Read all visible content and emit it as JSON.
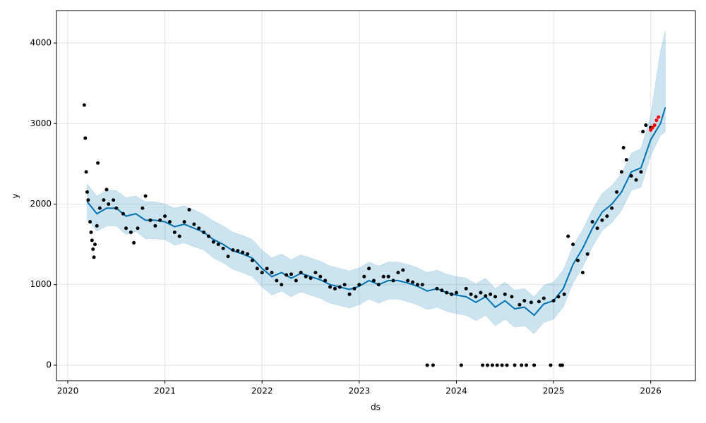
{
  "chart_data": {
    "type": "line",
    "xlabel": "ds",
    "ylabel": "y",
    "xlim": [
      2019.884,
      2026.46
    ],
    "ylim": [
      -193,
      4403
    ],
    "xticks": [
      2020,
      2021,
      2022,
      2023,
      2024,
      2025,
      2026
    ],
    "yticks": [
      0,
      1000,
      2000,
      3000,
      4000
    ],
    "grid": true,
    "series": [
      {
        "type": "band",
        "color": "#0072b2",
        "x": [
          2020.2,
          2020.3,
          2020.4,
          2020.5,
          2020.6,
          2020.7,
          2020.8,
          2020.9,
          2021.0,
          2021.1,
          2021.2,
          2021.3,
          2021.4,
          2021.5,
          2021.6,
          2021.7,
          2021.8,
          2021.9,
          2022.0,
          2022.1,
          2022.2,
          2022.3,
          2022.4,
          2022.5,
          2022.6,
          2022.7,
          2022.8,
          2022.9,
          2023.0,
          2023.1,
          2023.2,
          2023.3,
          2023.4,
          2023.5,
          2023.6,
          2023.7,
          2023.8,
          2023.9,
          2024.0,
          2024.1,
          2024.2,
          2024.3,
          2024.4,
          2024.5,
          2024.6,
          2024.7,
          2024.8,
          2024.9,
          2025.0,
          2025.1,
          2025.2,
          2025.3,
          2025.4,
          2025.5,
          2025.6,
          2025.7,
          2025.8,
          2025.9,
          2026.0,
          2026.1,
          2026.15
        ],
        "upper": [
          2250,
          2100,
          2170,
          2170,
          2080,
          2100,
          2030,
          2030,
          2000,
          1950,
          1980,
          1930,
          1870,
          1790,
          1730,
          1650,
          1610,
          1560,
          1430,
          1330,
          1380,
          1310,
          1370,
          1330,
          1290,
          1230,
          1200,
          1170,
          1210,
          1280,
          1230,
          1280,
          1280,
          1250,
          1210,
          1150,
          1180,
          1130,
          1100,
          1080,
          1010,
          1080,
          950,
          1030,
          930,
          950,
          850,
          990,
          1030,
          1180,
          1480,
          1680,
          1930,
          2130,
          2230,
          2380,
          2630,
          2690,
          3100,
          3900,
          4150
        ],
        "lower": [
          1810,
          1660,
          1730,
          1730,
          1620,
          1660,
          1570,
          1570,
          1560,
          1490,
          1520,
          1470,
          1430,
          1330,
          1270,
          1190,
          1150,
          1100,
          970,
          870,
          920,
          850,
          910,
          870,
          830,
          770,
          740,
          710,
          750,
          820,
          770,
          820,
          820,
          790,
          750,
          690,
          720,
          670,
          640,
          620,
          550,
          620,
          490,
          570,
          470,
          490,
          390,
          530,
          570,
          720,
          1020,
          1220,
          1470,
          1670,
          1770,
          1920,
          2170,
          2210,
          2600,
          2850,
          2900
        ]
      },
      {
        "type": "line",
        "color": "#0072b2",
        "x": [
          2020.2,
          2020.3,
          2020.4,
          2020.5,
          2020.6,
          2020.7,
          2020.8,
          2020.9,
          2021.0,
          2021.1,
          2021.2,
          2021.3,
          2021.4,
          2021.5,
          2021.6,
          2021.7,
          2021.8,
          2021.9,
          2022.0,
          2022.1,
          2022.2,
          2022.3,
          2022.4,
          2022.5,
          2022.6,
          2022.7,
          2022.8,
          2022.9,
          2023.0,
          2023.1,
          2023.2,
          2023.3,
          2023.4,
          2023.5,
          2023.6,
          2023.7,
          2023.8,
          2023.9,
          2024.0,
          2024.1,
          2024.2,
          2024.3,
          2024.4,
          2024.5,
          2024.6,
          2024.7,
          2024.8,
          2024.9,
          2025.0,
          2025.1,
          2025.2,
          2025.3,
          2025.4,
          2025.5,
          2025.6,
          2025.7,
          2025.8,
          2025.9,
          2026.0,
          2026.1,
          2026.15
        ],
        "values": [
          2030,
          1880,
          1950,
          1950,
          1850,
          1880,
          1800,
          1800,
          1780,
          1720,
          1750,
          1700,
          1650,
          1560,
          1500,
          1420,
          1380,
          1330,
          1200,
          1100,
          1150,
          1080,
          1140,
          1100,
          1060,
          1000,
          970,
          940,
          980,
          1050,
          1000,
          1050,
          1050,
          1020,
          980,
          920,
          950,
          900,
          870,
          850,
          780,
          850,
          720,
          800,
          700,
          720,
          620,
          760,
          800,
          950,
          1250,
          1450,
          1700,
          1900,
          2000,
          2150,
          2400,
          2450,
          2800,
          3000,
          3200
        ]
      },
      {
        "type": "scatter",
        "color": "#000000",
        "x": [
          2020.17,
          2020.18,
          2020.19,
          2020.2,
          2020.21,
          2020.23,
          2020.24,
          2020.25,
          2020.26,
          2020.27,
          2020.28,
          2020.3,
          2020.31,
          2020.33,
          2020.37,
          2020.4,
          2020.42,
          2020.47,
          2020.5,
          2020.57,
          2020.6,
          2020.65,
          2020.68,
          2020.72,
          2020.77,
          2020.8,
          2020.85,
          2020.9,
          2020.95,
          2021.0,
          2021.05,
          2021.1,
          2021.15,
          2021.2,
          2021.25,
          2021.3,
          2021.35,
          2021.4,
          2021.45,
          2021.5,
          2021.55,
          2021.6,
          2021.65,
          2021.7,
          2021.75,
          2021.8,
          2021.85,
          2021.9,
          2021.95,
          2022.0,
          2022.05,
          2022.1,
          2022.15,
          2022.2,
          2022.25,
          2022.3,
          2022.35,
          2022.4,
          2022.45,
          2022.5,
          2022.55,
          2022.6,
          2022.65,
          2022.7,
          2022.75,
          2022.8,
          2022.85,
          2022.9,
          2022.95,
          2023.0,
          2023.05,
          2023.1,
          2023.15,
          2023.2,
          2023.25,
          2023.3,
          2023.35,
          2023.4,
          2023.45,
          2023.5,
          2023.55,
          2023.6,
          2023.65,
          2023.7,
          2023.76,
          2023.8,
          2023.85,
          2023.9,
          2023.95,
          2024.0,
          2024.05,
          2024.1,
          2024.15,
          2024.2,
          2024.25,
          2024.27,
          2024.3,
          2024.32,
          2024.35,
          2024.37,
          2024.4,
          2024.42,
          2024.47,
          2024.5,
          2024.52,
          2024.57,
          2024.6,
          2024.65,
          2024.67,
          2024.7,
          2024.72,
          2024.77,
          2024.8,
          2024.85,
          2024.9,
          2024.97,
          2025.0,
          2025.05,
          2025.07,
          2025.09,
          2025.11,
          2025.15,
          2025.2,
          2025.25,
          2025.3,
          2025.35,
          2025.4,
          2025.45,
          2025.5,
          2025.55,
          2025.6,
          2025.65,
          2025.7,
          2025.72,
          2025.75,
          2025.8,
          2025.85,
          2025.9,
          2025.92,
          2025.95,
          2026.0
        ],
        "values": [
          3230,
          2820,
          2400,
          2150,
          2050,
          1780,
          1650,
          1550,
          1440,
          1340,
          1500,
          1730,
          2510,
          1950,
          2050,
          2180,
          2000,
          2050,
          1950,
          1880,
          1700,
          1650,
          1520,
          1700,
          1950,
          2100,
          1800,
          1730,
          1800,
          1850,
          1780,
          1650,
          1600,
          1780,
          1930,
          1750,
          1700,
          1650,
          1600,
          1530,
          1500,
          1450,
          1350,
          1430,
          1420,
          1400,
          1380,
          1300,
          1200,
          1150,
          1200,
          1150,
          1050,
          1000,
          1120,
          1130,
          1050,
          1150,
          1100,
          1080,
          1150,
          1100,
          1050,
          970,
          950,
          970,
          1000,
          880,
          950,
          1000,
          1100,
          1200,
          1050,
          1000,
          1100,
          1100,
          1050,
          1150,
          1180,
          1050,
          1030,
          1000,
          1000,
          0,
          0,
          950,
          930,
          900,
          880,
          900,
          0,
          950,
          880,
          850,
          900,
          0,
          860,
          0,
          880,
          0,
          850,
          0,
          0,
          880,
          0,
          850,
          0,
          750,
          0,
          800,
          0,
          780,
          0,
          790,
          830,
          0,
          800,
          850,
          0,
          0,
          880,
          1600,
          1500,
          1300,
          1150,
          1380,
          1780,
          1700,
          1800,
          1850,
          1950,
          2150,
          2400,
          2700,
          2550,
          2350,
          2300,
          2400,
          2900,
          2980,
          2950
        ]
      },
      {
        "type": "scatter",
        "color": "#ff0000",
        "x": [
          2026.0,
          2026.02,
          2026.04,
          2026.06,
          2026.08
        ],
        "values": [
          2920,
          2950,
          2980,
          3040,
          3080
        ]
      }
    ]
  }
}
